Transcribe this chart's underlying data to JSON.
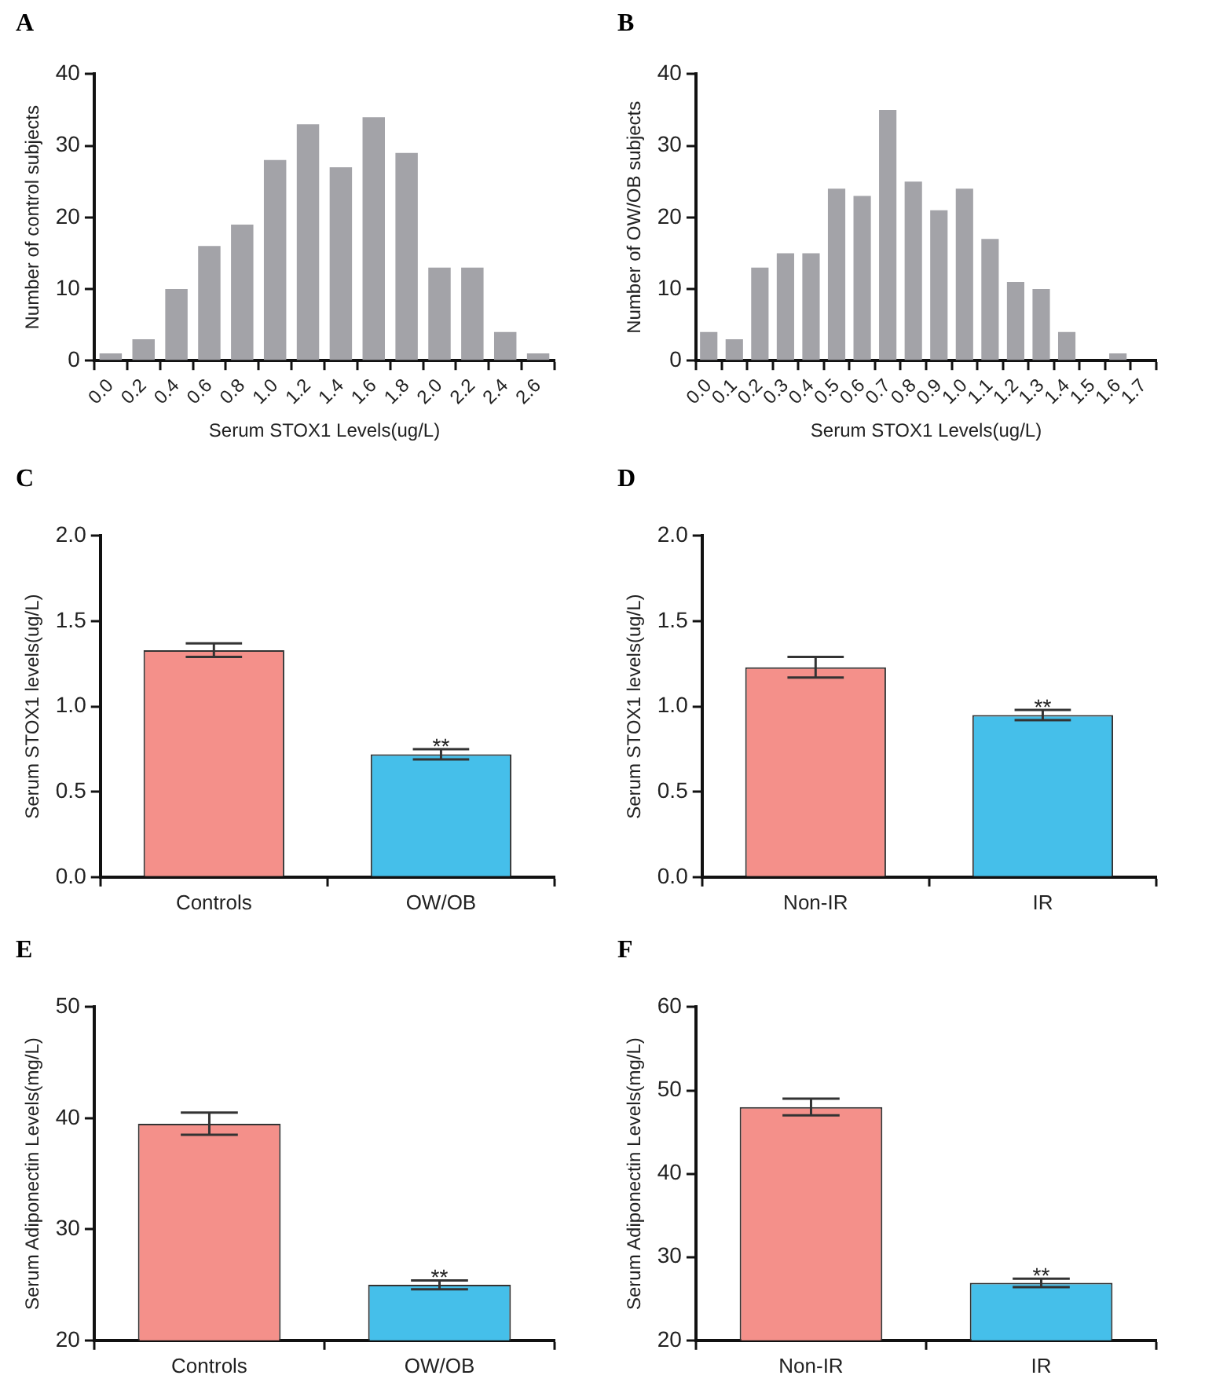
{
  "chart_data": [
    {
      "type": "bar",
      "title": "A",
      "xlabel": "Serum STOX1 Levels(ug/L)",
      "ylabel": "Number of control subjects",
      "categories": [
        "0.0",
        "0.2",
        "0.4",
        "0.6",
        "0.8",
        "1.0",
        "1.2",
        "1.4",
        "1.6",
        "1.8",
        "2.0",
        "2.2",
        "2.4",
        "2.6"
      ],
      "values": [
        1,
        3,
        10,
        16,
        19,
        28,
        33,
        27,
        34,
        29,
        13,
        13,
        4,
        1
      ],
      "color": "#a3a3a8",
      "ylim": [
        0,
        40
      ],
      "yticks": [
        0,
        10,
        20,
        30,
        40
      ]
    },
    {
      "type": "bar",
      "title": "B",
      "xlabel": "Serum STOX1 Levels(ug/L)",
      "ylabel": "Number of OW/OB subjects",
      "categories": [
        "0.0",
        "0.1",
        "0.2",
        "0.3",
        "0.4",
        "0.5",
        "0.6",
        "0.7",
        "0.8",
        "0.9",
        "1.0",
        "1.1",
        "1.2",
        "1.3",
        "1.4",
        "1.5",
        "1.6",
        "1.7"
      ],
      "values": [
        4,
        3,
        13,
        15,
        15,
        24,
        23,
        35,
        25,
        21,
        24,
        17,
        11,
        10,
        4,
        0,
        1,
        0
      ],
      "color": "#a3a3a8",
      "ylim": [
        0,
        40
      ],
      "yticks": [
        0,
        10,
        20,
        30,
        40
      ]
    },
    {
      "type": "bar",
      "title": "C",
      "ylabel": "Serum STOX1 levels(ug/L)",
      "categories": [
        "Controls",
        "OW/OB"
      ],
      "values": [
        1.33,
        0.72
      ],
      "colors": [
        "#f4908a",
        "#45bfea"
      ],
      "errors": [
        0.04,
        0.03
      ],
      "ylim": [
        0,
        2
      ],
      "yticks": [
        {
          "value": 0,
          "label": "0.0"
        },
        {
          "value": 0.5,
          "label": "0.5"
        },
        {
          "value": 1,
          "label": "1.0"
        },
        {
          "value": 1.5,
          "label": "1.5"
        },
        {
          "value": 2,
          "label": "2.0"
        }
      ],
      "annotations": [
        {
          "text": "**",
          "x": "OW/OB",
          "y": 0.75
        }
      ]
    },
    {
      "type": "bar",
      "title": "D",
      "ylabel": "Serum STOX1 levels(ug/L)",
      "categories": [
        "Non-IR",
        "IR"
      ],
      "values": [
        1.23,
        0.95
      ],
      "colors": [
        "#f4908a",
        "#45bfea"
      ],
      "errors": [
        0.06,
        0.03
      ],
      "ylim": [
        0,
        2
      ],
      "yticks": [
        {
          "value": 0,
          "label": "0.0"
        },
        {
          "value": 0.5,
          "label": "0.5"
        },
        {
          "value": 1,
          "label": "1.0"
        },
        {
          "value": 1.5,
          "label": "1.5"
        },
        {
          "value": 2,
          "label": "2.0"
        }
      ],
      "annotations": [
        {
          "text": "**",
          "x": "IR",
          "y": 0.98
        }
      ]
    },
    {
      "type": "bar",
      "title": "E",
      "ylabel": "Serum Adiponectin Levels(mg/L)",
      "categories": [
        "Controls",
        "OW/OB"
      ],
      "values": [
        39.5,
        25.0
      ],
      "colors": [
        "#f4908a",
        "#45bfea"
      ],
      "errors": [
        1.0,
        0.4
      ],
      "ylim": [
        20,
        50
      ],
      "yticks": [
        20,
        30,
        40,
        50
      ],
      "annotations": [
        {
          "text": "**",
          "x": "OW/OB",
          "y": 25.4
        }
      ]
    },
    {
      "type": "bar",
      "title": "F",
      "ylabel": "Serum Adiponectin Levels(mg/L)",
      "categories": [
        "Non-IR",
        "IR"
      ],
      "values": [
        48.0,
        26.9
      ],
      "colors": [
        "#f4908a",
        "#45bfea"
      ],
      "errors": [
        1.0,
        0.5
      ],
      "ylim": [
        20,
        60
      ],
      "yticks": [
        20,
        30,
        40,
        50,
        60
      ],
      "annotations": [
        {
          "text": "**",
          "x": "IR",
          "y": 27.4
        }
      ]
    }
  ]
}
